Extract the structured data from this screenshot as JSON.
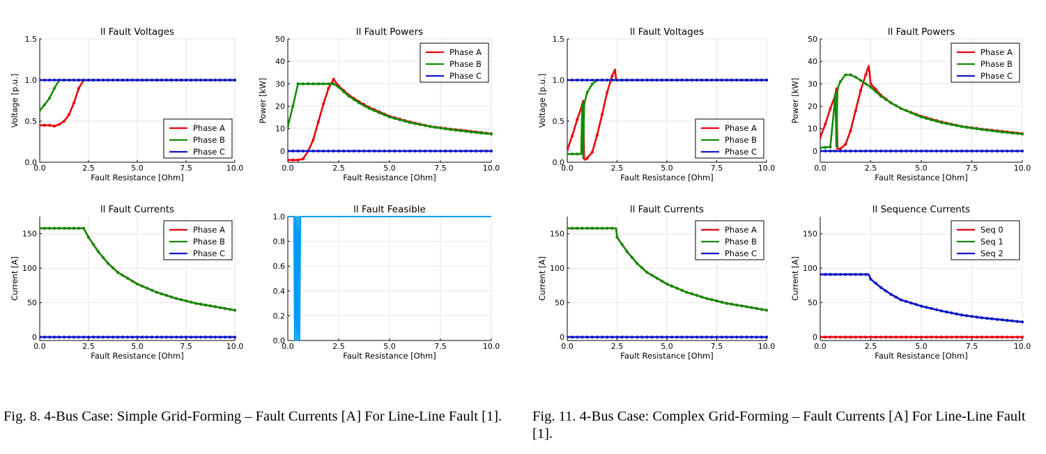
{
  "captions": {
    "left": "Fig. 8.  4-Bus Case: Simple Grid-Forming – Fault Currents [A] For Line-Line Fault [1].",
    "right": "Fig. 11.  4-Bus Case: Complex Grid-Forming – Fault Currents [A] For Line-Line Fault [1]."
  },
  "colors": {
    "phase_a": "#e8000b",
    "phase_b": "#138a07",
    "phase_c": "#1016c8",
    "feasible": "#009af9"
  },
  "chart_data": [
    {
      "type": "line",
      "title": "ll Fault Voltages",
      "xlabel": "Fault Resistance [Ohm]",
      "ylabel": "Voltage [p.u.]",
      "xlim": [
        0,
        10
      ],
      "ylim": [
        0,
        1.5
      ],
      "xticks": [
        "0.0",
        "2.5",
        "5.0",
        "7.5",
        "10.0"
      ],
      "yticks": [
        "0.0",
        "0.5",
        "1.0",
        "1.5"
      ],
      "grid": true,
      "legend": "bottom-right",
      "series": [
        {
          "name": "Phase A",
          "x": [
            0,
            0.25,
            0.5,
            0.75,
            1.0,
            1.25,
            1.5,
            1.75,
            2.0,
            2.25,
            10
          ],
          "y": [
            0.45,
            0.45,
            0.45,
            0.44,
            0.46,
            0.5,
            0.58,
            0.72,
            0.9,
            1.0,
            1.0
          ]
        },
        {
          "name": "Phase B",
          "x": [
            0,
            0.25,
            0.5,
            0.75,
            1.0,
            10
          ],
          "y": [
            0.63,
            0.7,
            0.78,
            0.9,
            1.0,
            1.0
          ]
        },
        {
          "name": "Phase C",
          "x": [
            0,
            10
          ],
          "y": [
            1.0,
            1.0
          ]
        }
      ]
    },
    {
      "type": "line",
      "title": "ll Fault Powers",
      "xlabel": "Fault Resistance [Ohm]",
      "ylabel": "Power [kW]",
      "xlim": [
        0,
        10
      ],
      "ylim": [
        -5,
        50
      ],
      "xticks": [
        "0.0",
        "2.5",
        "5.0",
        "7.5",
        "10.0"
      ],
      "yticks": [
        "0",
        "10",
        "20",
        "30",
        "40",
        "50"
      ],
      "grid": true,
      "legend": "top-right",
      "series": [
        {
          "name": "Phase A",
          "x": [
            0,
            0.25,
            0.5,
            0.75,
            1.0,
            1.25,
            1.5,
            1.75,
            2.0,
            2.25,
            2.5,
            3.0,
            3.5,
            4.0,
            5.0,
            6.0,
            7.0,
            8.0,
            9.0,
            10.0
          ],
          "y": [
            -4,
            -4,
            -4,
            -3.5,
            0,
            5,
            13,
            21,
            28,
            32,
            29,
            25,
            22,
            19.5,
            15.5,
            13,
            11,
            9.8,
            8.8,
            7.7
          ]
        },
        {
          "name": "Phase B",
          "x": [
            0,
            0.25,
            0.5,
            0.75,
            1.0,
            1.5,
            2.0,
            2.25,
            2.5,
            3.0,
            3.5,
            4.0,
            5.0,
            6.0,
            7.0,
            8.0,
            9.0,
            10.0
          ],
          "y": [
            11,
            20,
            30,
            30,
            30,
            30,
            30,
            30,
            28.5,
            24.5,
            21.5,
            19,
            15.2,
            12.7,
            10.9,
            9.6,
            8.5,
            7.6
          ]
        },
        {
          "name": "Phase C",
          "x": [
            0,
            10
          ],
          "y": [
            0,
            0
          ]
        }
      ]
    },
    {
      "type": "line",
      "title": "ll Fault Voltages",
      "xlabel": "Fault Resistance [Ohm]",
      "ylabel": "Voltage [p.u.]",
      "xlim": [
        0,
        10
      ],
      "ylim": [
        0,
        1.5
      ],
      "xticks": [
        "0.0",
        "2.5",
        "5.0",
        "7.5",
        "10.0"
      ],
      "yticks": [
        "0.0",
        "0.5",
        "1.0",
        "1.5"
      ],
      "grid": true,
      "legend": "bottom-right",
      "series": [
        {
          "name": "Phase A",
          "x": [
            0,
            0.25,
            0.5,
            0.75,
            0.8,
            0.85,
            0.9,
            1.0,
            1.25,
            1.5,
            1.75,
            2.0,
            2.25,
            2.4,
            2.45,
            10
          ],
          "y": [
            0.15,
            0.32,
            0.52,
            0.7,
            0.75,
            0.04,
            0.03,
            0.05,
            0.12,
            0.33,
            0.58,
            0.85,
            1.05,
            1.13,
            1.0,
            1.0
          ]
        },
        {
          "name": "Phase B",
          "x": [
            0,
            0.5,
            0.7,
            0.75,
            0.8,
            0.85,
            0.9,
            1.0,
            1.25,
            1.5,
            2.0,
            10
          ],
          "y": [
            0.1,
            0.1,
            0.1,
            0.7,
            0.05,
            0.7,
            0.75,
            0.85,
            0.95,
            1.0,
            1.0,
            1.0
          ]
        },
        {
          "name": "Phase C",
          "x": [
            0,
            10
          ],
          "y": [
            1.0,
            1.0
          ]
        }
      ]
    },
    {
      "type": "line",
      "title": "ll Fault Powers",
      "xlabel": "Fault Resistance [Ohm]",
      "ylabel": "Power [kW]",
      "xlim": [
        0,
        10
      ],
      "ylim": [
        -5,
        50
      ],
      "xticks": [
        "0.0",
        "2.5",
        "5.0",
        "7.5",
        "10.0"
      ],
      "yticks": [
        "0",
        "10",
        "20",
        "30",
        "40",
        "50"
      ],
      "grid": true,
      "legend": "top-right",
      "series": [
        {
          "name": "Phase A",
          "x": [
            0,
            0.25,
            0.5,
            0.75,
            0.8,
            0.85,
            1.0,
            1.25,
            1.5,
            1.75,
            2.0,
            2.25,
            2.4,
            2.5,
            3.0,
            3.5,
            4.0,
            5.0,
            6.0,
            7.0,
            8.0,
            9.0,
            10.0
          ],
          "y": [
            6,
            12,
            19,
            25,
            28,
            1,
            1,
            3,
            9,
            18,
            27,
            34,
            38,
            30,
            25,
            21.5,
            19,
            15.5,
            13,
            11,
            9.8,
            8.8,
            7.8
          ]
        },
        {
          "name": "Phase B",
          "x": [
            0,
            0.5,
            0.75,
            0.8,
            0.85,
            0.9,
            1.0,
            1.25,
            1.5,
            1.75,
            2.0,
            2.5,
            3.0,
            3.5,
            4.0,
            5.0,
            6.0,
            7.0,
            8.0,
            9.0,
            10.0
          ],
          "y": [
            1.5,
            1.8,
            25,
            2,
            27,
            29,
            31,
            34,
            34,
            33,
            31.5,
            28.5,
            24.5,
            21.5,
            19,
            15.2,
            12.7,
            10.9,
            9.6,
            8.5,
            7.6
          ]
        },
        {
          "name": "Phase C",
          "x": [
            0,
            10
          ],
          "y": [
            0,
            0
          ]
        }
      ]
    },
    {
      "type": "line",
      "title": "ll Fault Currents",
      "xlabel": "Fault Resistance [Ohm]",
      "ylabel": "Current [A]",
      "xlim": [
        0,
        10
      ],
      "ylim": [
        -5,
        175
      ],
      "xticks": [
        "0.0",
        "2.5",
        "5.0",
        "7.5",
        "10.0"
      ],
      "yticks": [
        "0",
        "50",
        "100",
        "150"
      ],
      "grid": true,
      "legend": "top-right",
      "series": [
        {
          "name": "Phase A",
          "x": [
            0,
            2.25,
            2.5,
            3.0,
            3.5,
            4.0,
            5.0,
            6.0,
            7.0,
            8.0,
            9.0,
            10.0
          ],
          "y": [
            158,
            158,
            145,
            124,
            107,
            94,
            77,
            65,
            56,
            49,
            44,
            39
          ]
        },
        {
          "name": "Phase B",
          "x": [
            0,
            2.25,
            2.5,
            3.0,
            3.5,
            4.0,
            5.0,
            6.0,
            7.0,
            8.0,
            9.0,
            10.0
          ],
          "y": [
            158,
            158,
            145,
            124,
            107,
            94,
            77,
            65,
            56,
            49,
            44,
            39
          ]
        },
        {
          "name": "Phase C",
          "x": [
            0,
            10
          ],
          "y": [
            0,
            0
          ]
        }
      ]
    },
    {
      "type": "line",
      "title": "ll Fault Feasible",
      "xlabel": "Fault Resistance [Ohm]",
      "ylabel": "",
      "xlim": [
        0,
        10
      ],
      "ylim": [
        0,
        1.0
      ],
      "xticks": [
        "0.0",
        "2.5",
        "5.0",
        "7.5",
        "10.0"
      ],
      "yticks": [
        "0.0",
        "0.2",
        "0.4",
        "0.6",
        "0.8",
        "1.0"
      ],
      "grid": true,
      "legend": "none",
      "series": [
        {
          "x": [
            0,
            0.3,
            0.34,
            0.38,
            0.42,
            0.46,
            0.5,
            0.54,
            0.58,
            0.62,
            10
          ],
          "y": [
            1,
            1,
            0,
            1,
            0,
            1,
            0,
            1,
            0,
            1,
            1
          ]
        }
      ]
    },
    {
      "type": "line",
      "title": "ll Fault Currents",
      "xlabel": "Fault Resistance [Ohm]",
      "ylabel": "Current [A]",
      "xlim": [
        0,
        10
      ],
      "ylim": [
        -5,
        175
      ],
      "xticks": [
        "0.0",
        "2.5",
        "5.0",
        "7.5",
        "10.0"
      ],
      "yticks": [
        "0",
        "50",
        "100",
        "150"
      ],
      "grid": true,
      "legend": "top-right",
      "series": [
        {
          "name": "Phase A",
          "x": [
            0,
            2.45,
            2.5,
            3.0,
            3.5,
            4.0,
            5.0,
            6.0,
            7.0,
            8.0,
            9.0,
            10.0
          ],
          "y": [
            158,
            158,
            145,
            124,
            107,
            94,
            77,
            65,
            56,
            49,
            44,
            39
          ]
        },
        {
          "name": "Phase B",
          "x": [
            0,
            2.45,
            2.5,
            3.0,
            3.5,
            4.0,
            5.0,
            6.0,
            7.0,
            8.0,
            9.0,
            10.0
          ],
          "y": [
            158,
            158,
            145,
            124,
            107,
            94,
            77,
            65,
            56,
            49,
            44,
            39
          ]
        },
        {
          "name": "Phase C",
          "x": [
            0,
            10
          ],
          "y": [
            0,
            0
          ]
        }
      ]
    },
    {
      "type": "line",
      "title": "ll Sequence Currents",
      "xlabel": "Fault Resistance [Ohm]",
      "ylabel": "Current [A]",
      "xlim": [
        0,
        10
      ],
      "ylim": [
        -5,
        175
      ],
      "xticks": [
        "0.0",
        "2.5",
        "5.0",
        "7.5",
        "10.0"
      ],
      "yticks": [
        "0",
        "50",
        "100",
        "150"
      ],
      "grid": true,
      "legend": "top-right",
      "series": [
        {
          "name": "Seq 0",
          "x": [
            0,
            10
          ],
          "y": [
            0,
            0
          ]
        },
        {
          "name": "Seq 1",
          "x": [
            0,
            2.4,
            2.5,
            3.0,
            3.5,
            4.0,
            5.0,
            6.0,
            7.0,
            8.0,
            9.0,
            10.0
          ],
          "y": [
            91,
            91,
            84,
            72,
            62,
            54,
            45,
            38,
            32,
            28,
            25,
            22
          ]
        },
        {
          "name": "Seq 2",
          "x": [
            0,
            2.4,
            2.5,
            3.0,
            3.5,
            4.0,
            5.0,
            6.0,
            7.0,
            8.0,
            9.0,
            10.0
          ],
          "y": [
            91,
            91,
            84,
            72,
            62,
            54,
            45,
            38,
            32,
            28,
            25,
            22
          ]
        }
      ]
    }
  ]
}
